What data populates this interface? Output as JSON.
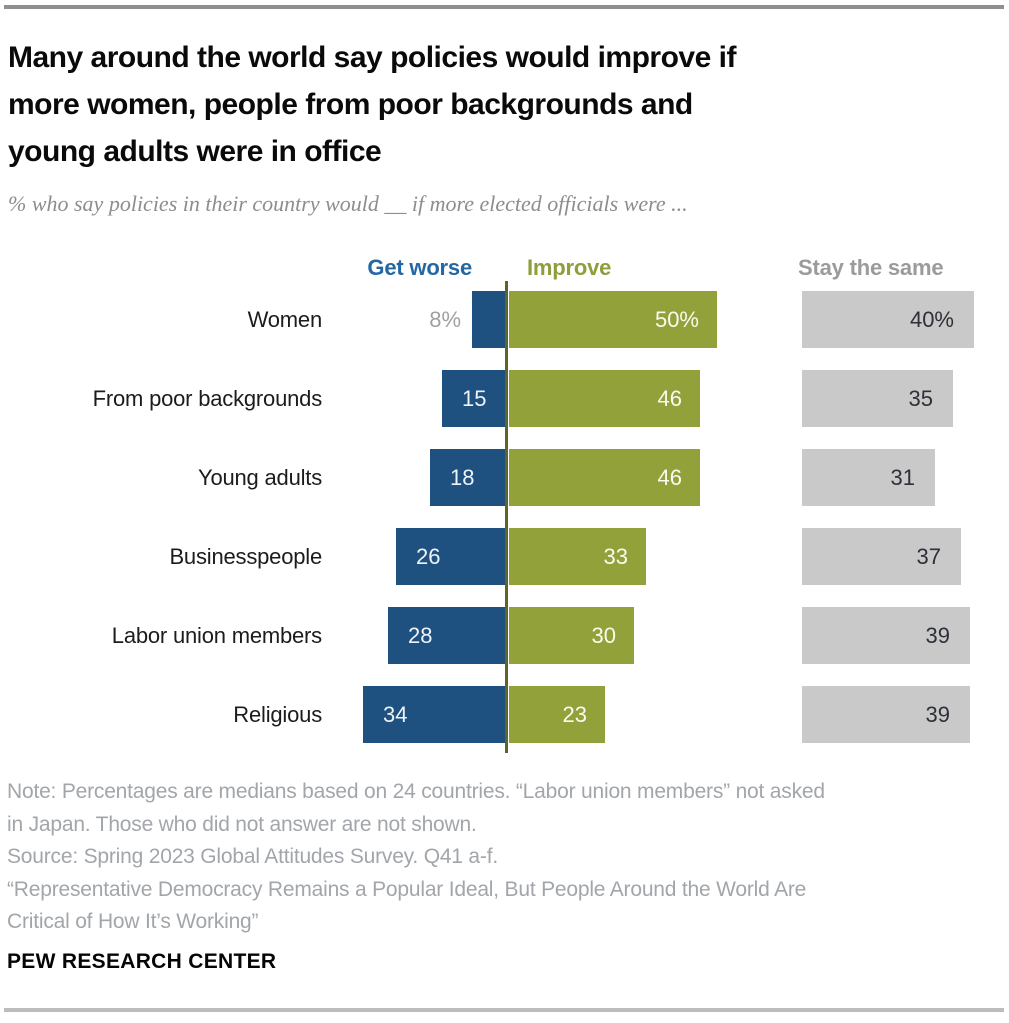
{
  "header": {
    "title_lines": [
      "Many around the world say policies would improve if",
      "more women, people from poor backgrounds and",
      "young adults were in office"
    ],
    "subtitle": "% who say policies in their country would __ if more elected officials were ..."
  },
  "chart_data": {
    "type": "bar",
    "orientation": "horizontal-diverging",
    "unit": "%",
    "title": "Many around the world say policies would improve if more women, people from poor backgrounds and young adults were in office",
    "categories": [
      "Women",
      "From poor backgrounds",
      "Young adults",
      "Businesspeople",
      "Labor union members",
      "Religious"
    ],
    "series": [
      {
        "name": "Get worse",
        "color": "#1e5080",
        "direction": "left-of-axis",
        "values": [
          8,
          15,
          18,
          26,
          28,
          34
        ],
        "labels": [
          "8%",
          "15",
          "18",
          "26",
          "28",
          "34"
        ]
      },
      {
        "name": "Improve",
        "color": "#93a13b",
        "direction": "right-of-axis",
        "values": [
          50,
          46,
          46,
          33,
          30,
          23
        ],
        "labels": [
          "50%",
          "46",
          "46",
          "33",
          "30",
          "23"
        ]
      },
      {
        "name": "Stay the same",
        "color": "#c9c9c9",
        "direction": "separate-right-panel",
        "values": [
          40,
          35,
          31,
          37,
          39,
          39
        ],
        "labels": [
          "40%",
          "35",
          "31",
          "37",
          "39",
          "39"
        ]
      }
    ],
    "legend_position": "top",
    "value_labels": "inside bars; gray outside label when bar too small (Women / Get worse 8%)",
    "xlim_left_series": [
      0,
      40
    ],
    "xlim_right_series": [
      0,
      55
    ]
  },
  "footer": {
    "note_lines": [
      "Note: Percentages are medians based on 24 countries. “Labor union members” not asked",
      "in Japan. Those who did not answer are not shown.",
      "Source: Spring 2023 Global Attitudes Survey. Q41 a-f.",
      "“Representative Democracy Remains a Popular Ideal, But People Around the World Are",
      "Critical of How It’s Working”"
    ],
    "brand": "PEW RESEARCH CENTER"
  }
}
